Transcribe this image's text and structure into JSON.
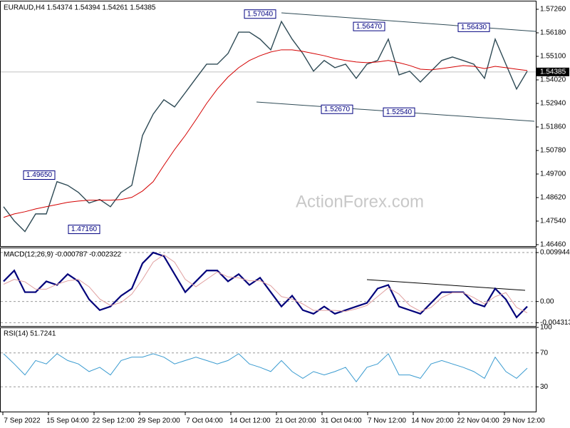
{
  "chart_data": [
    {
      "type": "line",
      "title": "EURAUD,H4  1.54374 1.54394 1.54261 1.54385",
      "ylim": [
        1.4636,
        1.5762
      ],
      "yticks": [
        {
          "value": 1.5726,
          "label": "1.57260"
        },
        {
          "value": 1.5618,
          "label": "1.56180"
        },
        {
          "value": 1.551,
          "label": "1.55100"
        },
        {
          "value": 1.5402,
          "label": "1.54020"
        },
        {
          "value": 1.5294,
          "label": "1.52940"
        },
        {
          "value": 1.5186,
          "label": "1.51860"
        },
        {
          "value": 1.5078,
          "label": "1.50780"
        },
        {
          "value": 1.497,
          "label": "1.49700"
        },
        {
          "value": 1.4862,
          "label": "1.48620"
        },
        {
          "value": 1.4754,
          "label": "1.47540"
        },
        {
          "value": 1.4646,
          "label": "1.46460"
        }
      ],
      "grid": false,
      "last_price": {
        "value": 1.54385,
        "label": "1.54385"
      },
      "annotations": [
        {
          "value": 1.5704,
          "label": "1.57040"
        },
        {
          "value": 1.5647,
          "label": "1.56470"
        },
        {
          "value": 1.5643,
          "label": "1.56430"
        },
        {
          "value": 1.5267,
          "label": "1.52670"
        },
        {
          "value": 1.5254,
          "label": "1.52540"
        },
        {
          "value": 1.4965,
          "label": "1.49650"
        },
        {
          "value": 1.4716,
          "label": "1.47160"
        }
      ],
      "watermark": "ActionForex.com",
      "series": [
        {
          "color": "#2e4a55",
          "values": [
            1.482,
            1.4755,
            1.4706,
            1.4787,
            1.4787,
            1.4935,
            1.4918,
            1.4886,
            1.4837,
            1.4853,
            1.482,
            1.4886,
            1.4918,
            1.5147,
            1.5245,
            1.5311,
            1.5278,
            1.5343,
            1.5409,
            1.5474,
            1.5474,
            1.5523,
            1.5621,
            1.5621,
            1.5589,
            1.554,
            1.567,
            1.5589,
            1.5523,
            1.5442,
            1.5491,
            1.5458,
            1.5474,
            1.5409,
            1.5474,
            1.5491,
            1.5589,
            1.5425,
            1.5442,
            1.5392,
            1.5442,
            1.5491,
            1.5507,
            1.5491,
            1.5474,
            1.5409,
            1.5589,
            1.5474,
            1.536,
            1.5442
          ]
        },
        {
          "color": "#d40000",
          "values": [
            1.4771,
            1.4787,
            1.4797,
            1.481,
            1.482,
            1.483,
            1.484,
            1.4846,
            1.485,
            1.485,
            1.485,
            1.4853,
            1.4863,
            1.4892,
            1.4935,
            1.501,
            1.5082,
            1.5147,
            1.5219,
            1.5294,
            1.536,
            1.5415,
            1.5458,
            1.5491,
            1.5513,
            1.553,
            1.554,
            1.554,
            1.5533,
            1.5523,
            1.5513,
            1.55,
            1.5491,
            1.5484,
            1.5481,
            1.5484,
            1.5491,
            1.5481,
            1.5468,
            1.5451,
            1.5448,
            1.5454,
            1.5461,
            1.5468,
            1.5464,
            1.5454,
            1.5464,
            1.5458,
            1.5451,
            1.5445
          ]
        }
      ]
    },
    {
      "type": "line",
      "title": "MACD(12,26,9) -0.000787 -0.002322",
      "ylim": [
        -0.00512,
        0.01082
      ],
      "yticks": [
        0.009944,
        {
          "value": 0,
          "label": "0.00"
        },
        -0.004313
      ],
      "grid": true,
      "series": [
        {
          "color": "#00007a",
          "values": [
            0.00409,
            0.00629,
            0.0019,
            0.0019,
            0.00409,
            0.00336,
            0.00556,
            0.00409,
            0.00044,
            -0.00175,
            -0.00102,
            0.00117,
            0.00263,
            0.00775,
            0.00994,
            0.00921,
            0.00556,
            0.0019,
            0.00409,
            0.00629,
            0.00629,
            0.00409,
            0.00556,
            0.00336,
            0.00482,
            0.0019,
            -0.00102,
            0.00117,
            -0.00175,
            -0.00249,
            -0.00102,
            -0.00249,
            -0.00175,
            -0.00102,
            -0.00029,
            0.00263,
            0.00336,
            -0.00102,
            -0.00175,
            -0.00249,
            -0.00029,
            0.0019,
            0.0019,
            0.0019,
            -0.00029,
            -0.00102,
            0.00263,
            0.00044,
            -0.00322,
            -0.00102
          ]
        },
        {
          "color": "#e0a0a0",
          "values": [
            0.0035,
            0.0045,
            0.004,
            0.0025,
            0.0025,
            0.0035,
            0.0042,
            0.0045,
            0.003,
            0.0005,
            -0.0008,
            -0.0002,
            0.0015,
            0.0045,
            0.008,
            0.0095,
            0.008,
            0.0045,
            0.003,
            0.0045,
            0.006,
            0.005,
            0.0048,
            0.0042,
            0.0042,
            0.0032,
            0.001,
            0.0005,
            -0.0005,
            -0.0018,
            -0.0018,
            -0.0018,
            -0.002,
            -0.0015,
            -0.0008,
            0.001,
            0.0028,
            0.0015,
            -0.0008,
            -0.002,
            -0.0012,
            0.0008,
            0.0018,
            0.0018,
            0.0008,
            -0.0005,
            0.001,
            0.0018,
            -0.0012,
            -0.0023
          ]
        }
      ]
    },
    {
      "type": "line",
      "title": "RSI(14) 51.7241",
      "ylim": [
        0,
        100
      ],
      "yticks": [
        100,
        70,
        30
      ],
      "grid": true,
      "series": [
        {
          "color": "#3a9bd0",
          "values": [
            69,
            57,
            44,
            61,
            57,
            69,
            61,
            57,
            48,
            53,
            44,
            61,
            65,
            65,
            69,
            65,
            57,
            61,
            65,
            61,
            57,
            61,
            69,
            57,
            53,
            48,
            61,
            48,
            40,
            48,
            44,
            48,
            53,
            36,
            53,
            57,
            69,
            44,
            44,
            40,
            57,
            61,
            57,
            53,
            48,
            40,
            65,
            48,
            40,
            52
          ]
        }
      ]
    }
  ],
  "x_axis": {
    "labels": [
      "7 Sep 2022",
      "15 Sep 04:00",
      "22 Sep 12:00",
      "29 Sep 20:00",
      "7 Oct 04:00",
      "14 Oct 12:00",
      "21 Oct 20:00",
      "31 Oct 04:00",
      "7 Nov 12:00",
      "14 Nov 20:00",
      "22 Nov 04:00",
      "29 Nov 12:00"
    ]
  }
}
